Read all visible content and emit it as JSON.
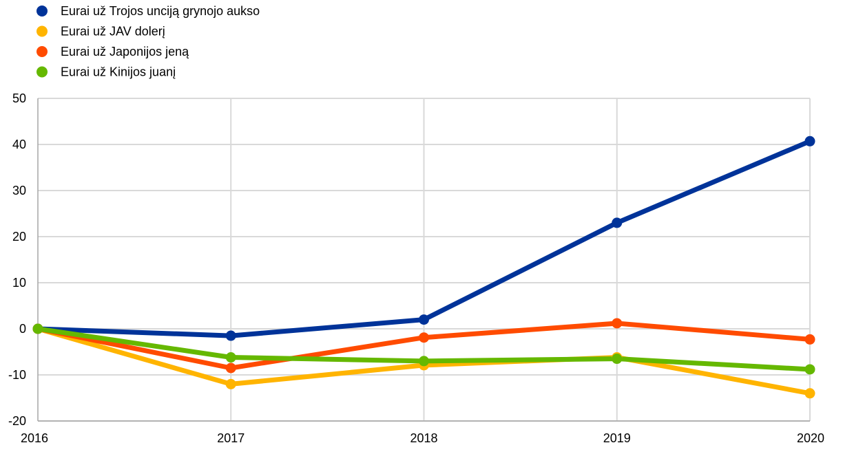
{
  "chart_data": {
    "type": "line",
    "title": "",
    "xlabel": "",
    "ylabel": "",
    "x": [
      "2016",
      "2017",
      "2018",
      "2019",
      "2020"
    ],
    "ylim": [
      -20,
      50
    ],
    "yticks": [
      -20,
      -10,
      0,
      10,
      20,
      30,
      40,
      50
    ],
    "grid": true,
    "legend_position": "top-left",
    "series": [
      {
        "name": "Eurai už Trojos unciją grynojo aukso",
        "color": "#003399",
        "values": [
          0,
          -1.5,
          2,
          23,
          40.7
        ]
      },
      {
        "name": "Eurai už JAV dolerį",
        "color": "#FFB400",
        "values": [
          0,
          -12,
          -7.9,
          -6.2,
          -14
        ]
      },
      {
        "name": "Eurai už Japonijos jeną",
        "color": "#FF4B00",
        "values": [
          0,
          -8.5,
          -1.9,
          1.2,
          -2.3
        ]
      },
      {
        "name": "Eurai už Kinijos juanį",
        "color": "#65B800",
        "values": [
          0,
          -6.2,
          -7,
          -6.5,
          -8.8
        ]
      }
    ]
  }
}
